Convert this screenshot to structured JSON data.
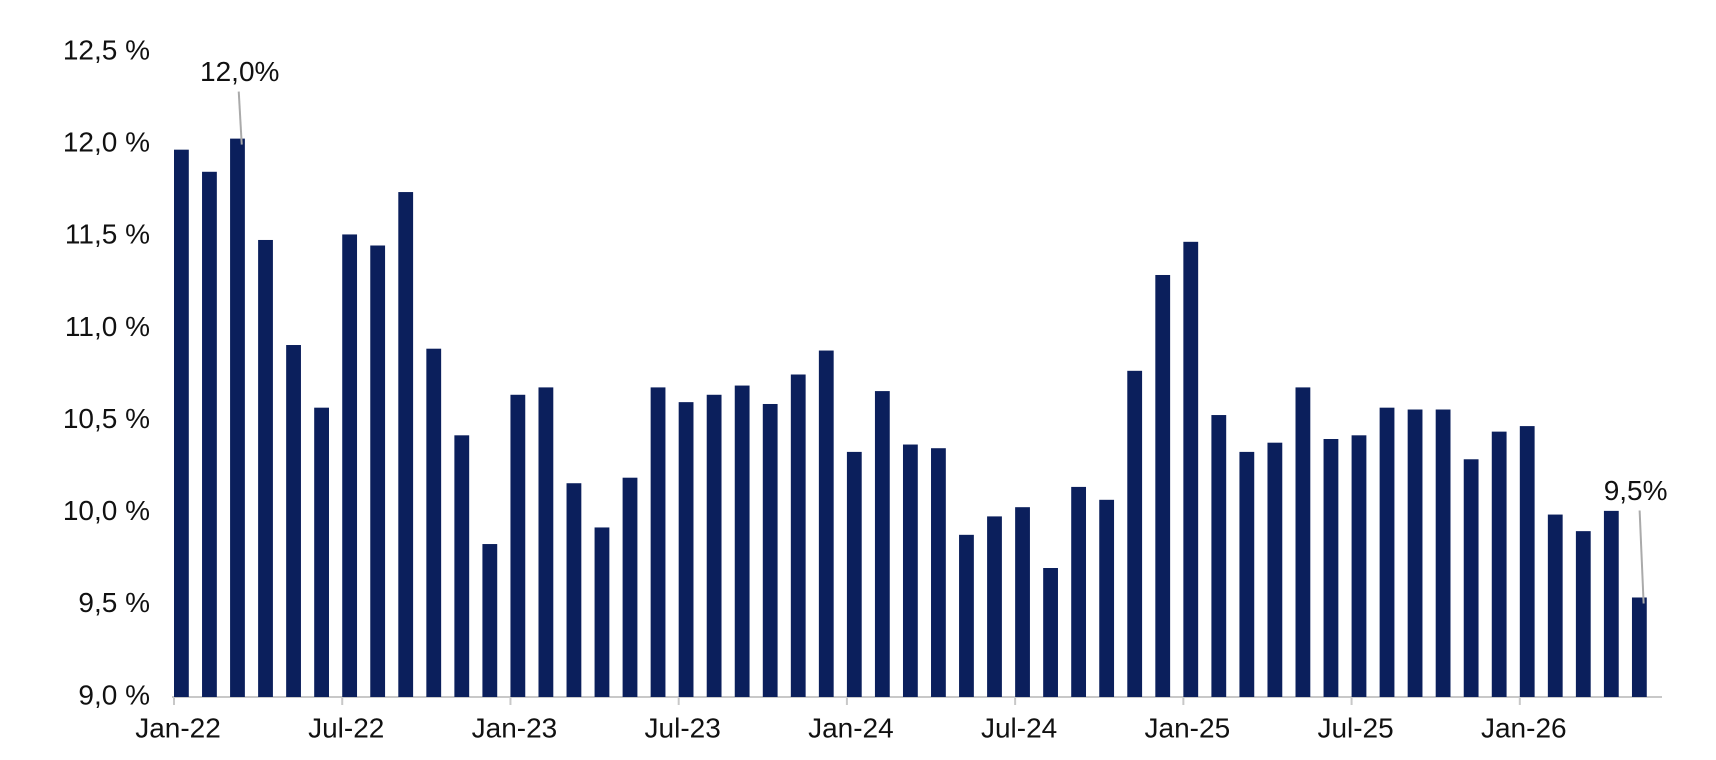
{
  "chart_data": {
    "type": "bar",
    "categories": [
      "Jan-22",
      null,
      null,
      null,
      null,
      null,
      "Jul-22",
      null,
      null,
      null,
      null,
      null,
      "Jan-23",
      null,
      null,
      null,
      null,
      null,
      "Jul-23",
      null,
      null,
      null,
      null,
      null,
      "Jan-24",
      null,
      null,
      null,
      null,
      null,
      "Jul-24",
      null,
      null,
      null,
      null,
      null,
      "Jan-25",
      null,
      null,
      null,
      null,
      null,
      "Jul-25",
      null,
      null,
      null,
      null,
      null,
      "Jan-26",
      null,
      null,
      null,
      null
    ],
    "values": [
      11.97,
      11.85,
      12.03,
      11.48,
      10.91,
      10.57,
      11.51,
      11.45,
      11.74,
      10.89,
      10.42,
      9.83,
      10.64,
      10.68,
      10.16,
      9.92,
      10.19,
      10.68,
      10.6,
      10.64,
      10.69,
      10.59,
      10.75,
      10.88,
      10.33,
      10.66,
      10.37,
      10.35,
      9.88,
      9.98,
      10.03,
      9.7,
      10.14,
      10.07,
      10.77,
      11.29,
      11.47,
      10.53,
      10.33,
      10.38,
      10.68,
      10.4,
      10.42,
      10.57,
      10.56,
      10.56,
      10.29,
      10.44,
      10.47,
      9.99,
      9.9,
      10.01,
      9.54
    ],
    "value_labels": [
      null,
      null,
      "12,0%",
      null,
      null,
      null,
      null,
      null,
      null,
      null,
      null,
      null,
      null,
      null,
      null,
      null,
      null,
      null,
      null,
      null,
      null,
      null,
      null,
      null,
      null,
      null,
      null,
      null,
      null,
      null,
      null,
      null,
      null,
      null,
      null,
      null,
      null,
      null,
      null,
      null,
      null,
      null,
      null,
      null,
      null,
      null,
      null,
      null,
      null,
      null,
      null,
      null,
      "9,5%"
    ],
    "color": "#0b1f5c",
    "ylim": [
      9.0,
      12.5
    ],
    "yticks": [
      {
        "value": 9.0,
        "label": "9,0 %"
      },
      {
        "value": 9.5,
        "label": "9,5 %"
      },
      {
        "value": 10.0,
        "label": "10,0 %"
      },
      {
        "value": 10.5,
        "label": "10,5 %"
      },
      {
        "value": 11.0,
        "label": "11,0 %"
      },
      {
        "value": 11.5,
        "label": "11,5 %"
      },
      {
        "value": 12.0,
        "label": "12,0 %"
      },
      {
        "value": 12.5,
        "label": "12,5 %"
      }
    ],
    "grid": false
  }
}
